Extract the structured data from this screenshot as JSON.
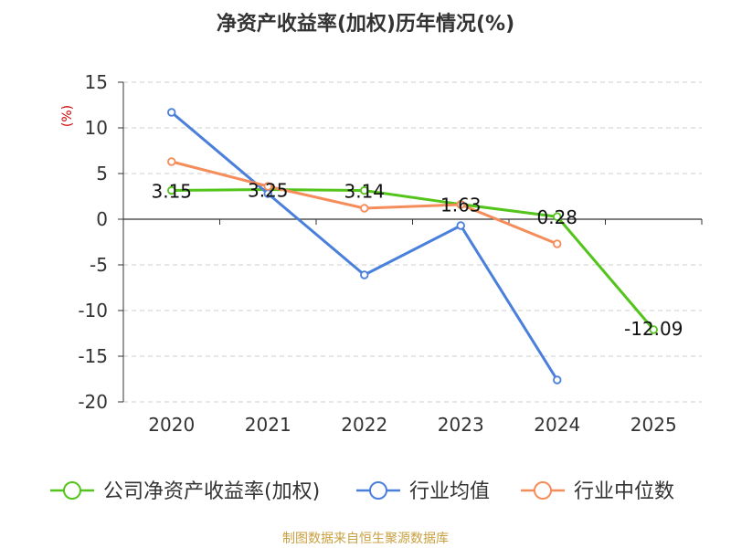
{
  "chart_data": {
    "type": "line",
    "title": "净资产收益率(加权)历年情况(%)",
    "ylabel": "(%)",
    "ylim": [
      -20,
      15
    ],
    "yticks": [
      15,
      10,
      5,
      0,
      -5,
      -10,
      -15,
      -20
    ],
    "categories": [
      "2020",
      "2021",
      "2022",
      "2023",
      "2024",
      "2025"
    ],
    "grid": true,
    "legend_position": "bottom",
    "series": [
      {
        "name": "公司净资产收益率(加权)",
        "color": "#52c41a",
        "values": [
          3.15,
          3.25,
          3.14,
          1.63,
          0.28,
          -12.09
        ],
        "labels": [
          "3.15",
          "3.25",
          "3.14",
          "1.63",
          "0.28",
          "-12.09"
        ]
      },
      {
        "name": "行业均值",
        "color": "#4a7fdb",
        "values": [
          11.7,
          2.8,
          -6.1,
          -0.7,
          -17.6,
          null
        ]
      },
      {
        "name": "行业中位数",
        "color": "#f58d5b",
        "values": [
          6.3,
          3.6,
          1.2,
          1.6,
          -2.7,
          null
        ]
      }
    ]
  },
  "footer": {
    "source": "制图数据来自恒生聚源数据库"
  }
}
